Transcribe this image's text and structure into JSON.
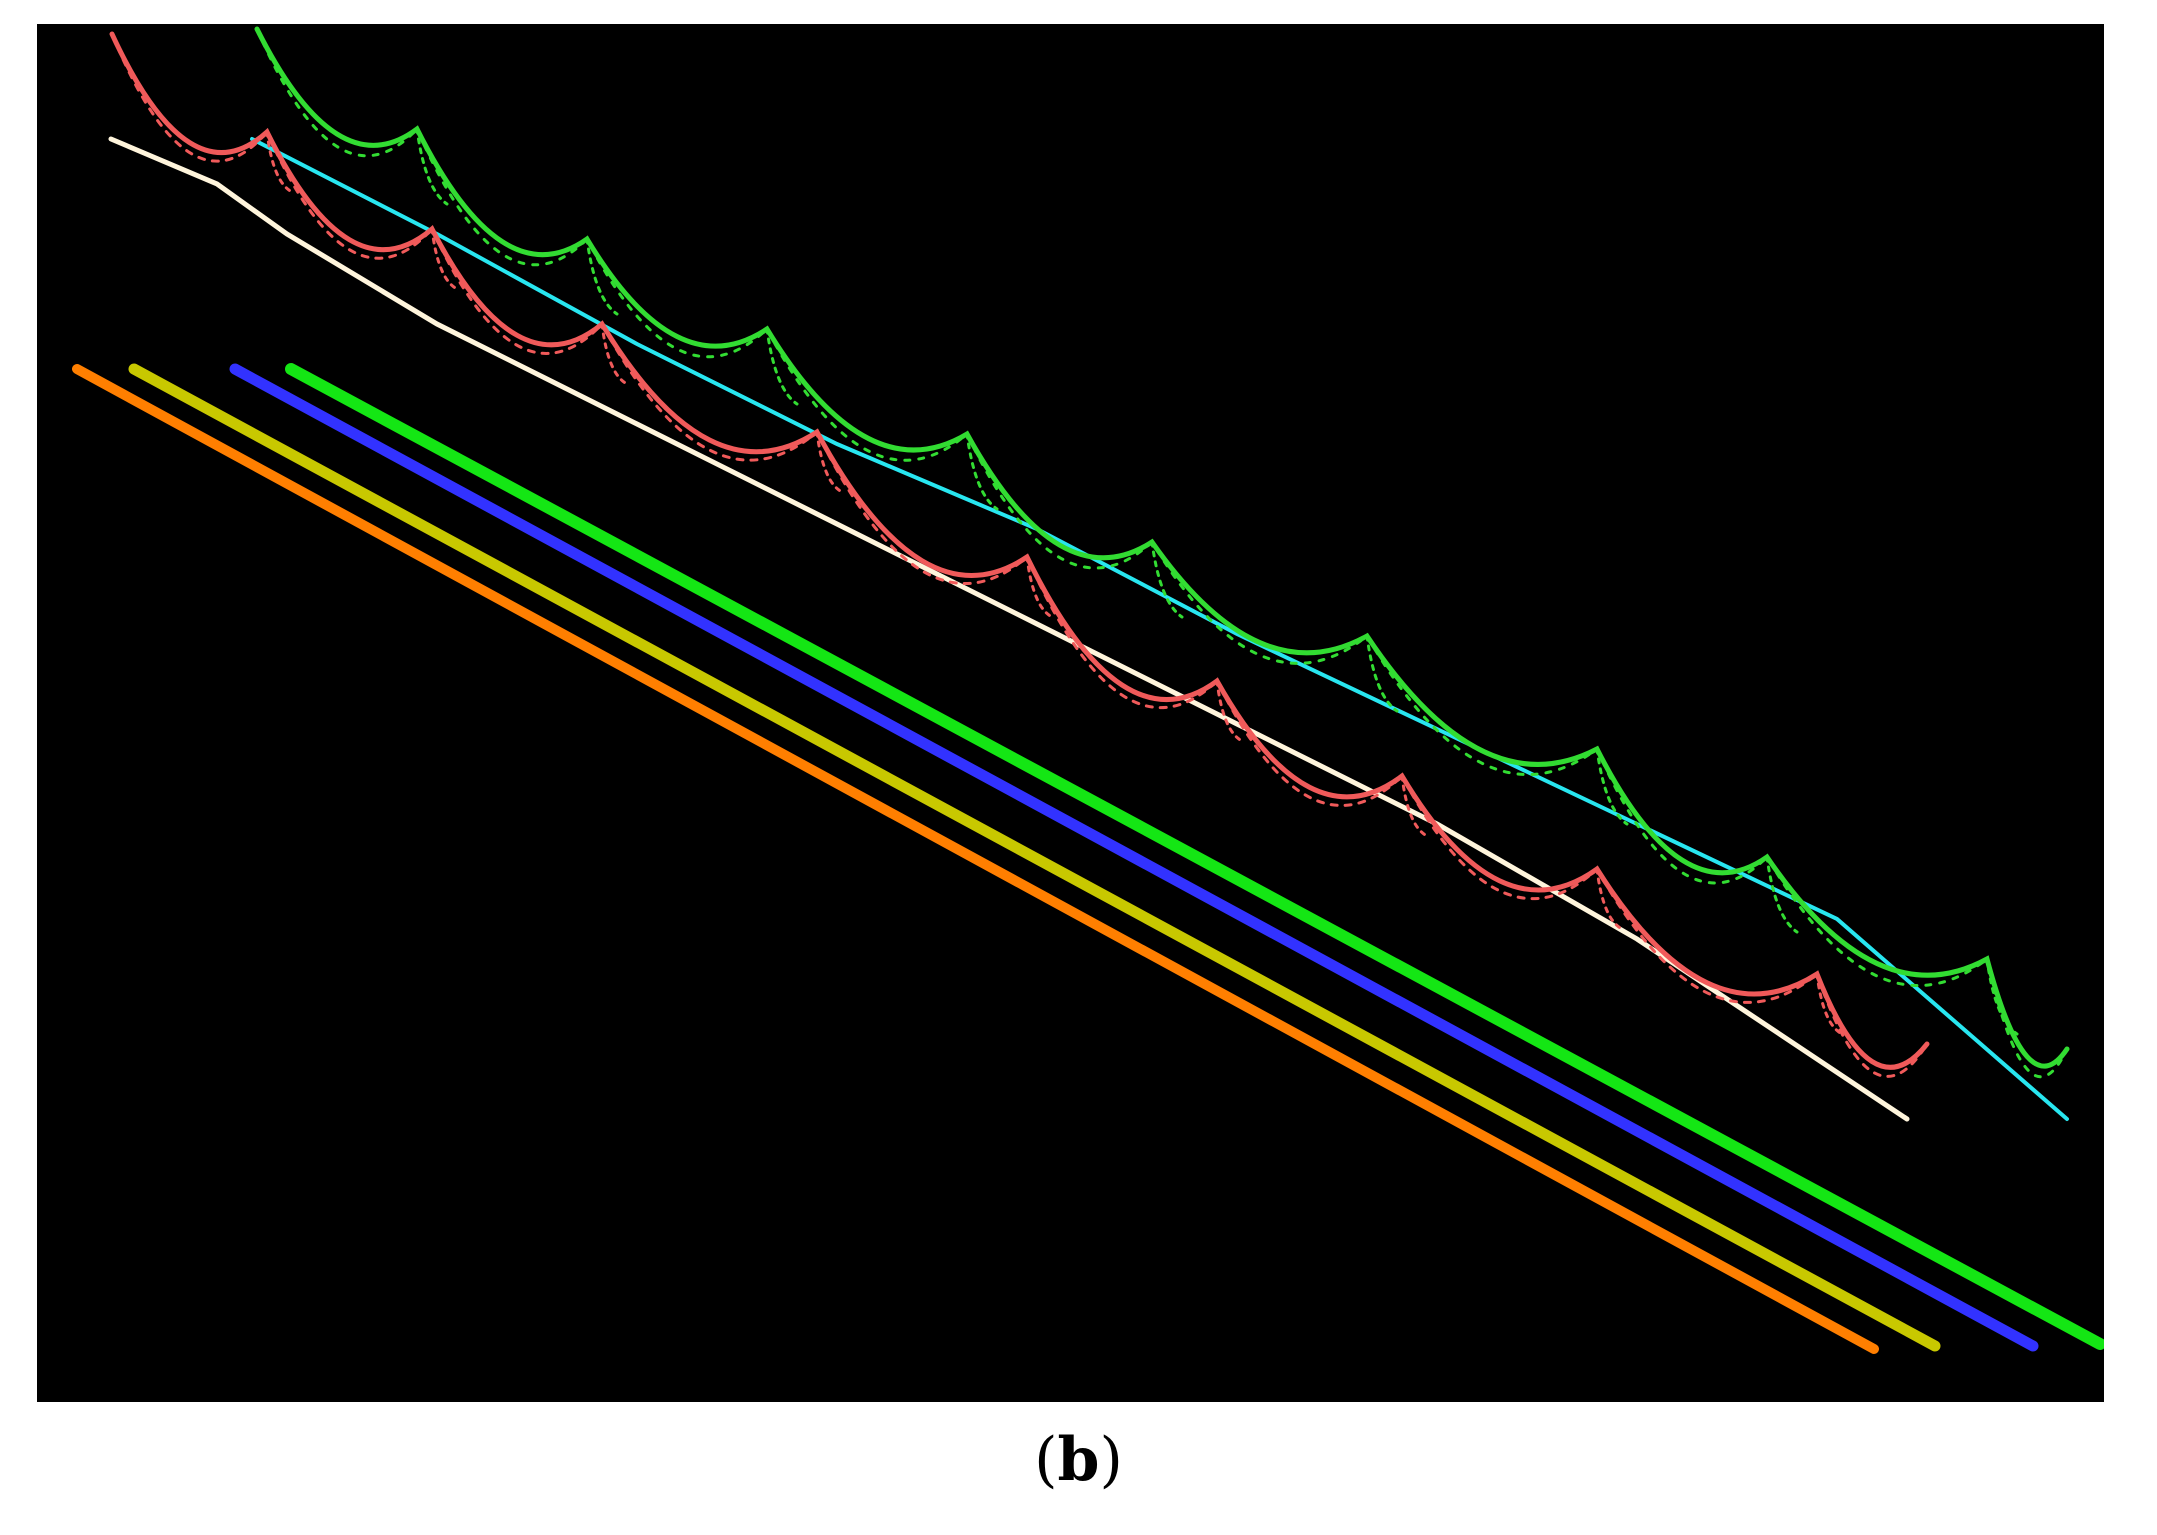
{
  "figure": {
    "caption_open": "(",
    "caption_letter": "b",
    "caption_close": ")",
    "background_color": "#000000",
    "classes": [
      {
        "name": "road-line-1",
        "color": "#ff7f00"
      },
      {
        "name": "road-line-2",
        "color": "#c8c800"
      },
      {
        "name": "road-line-3",
        "color": "#3232ff"
      },
      {
        "name": "road-line-4",
        "color": "#14e614"
      },
      {
        "name": "guardrail-white",
        "color": "#fff5dc"
      },
      {
        "name": "cable-cyan",
        "color": "#28e6f0"
      },
      {
        "name": "catenary-red",
        "color": "#f05a5a"
      },
      {
        "name": "catenary-green",
        "color": "#32dc32"
      }
    ]
  }
}
